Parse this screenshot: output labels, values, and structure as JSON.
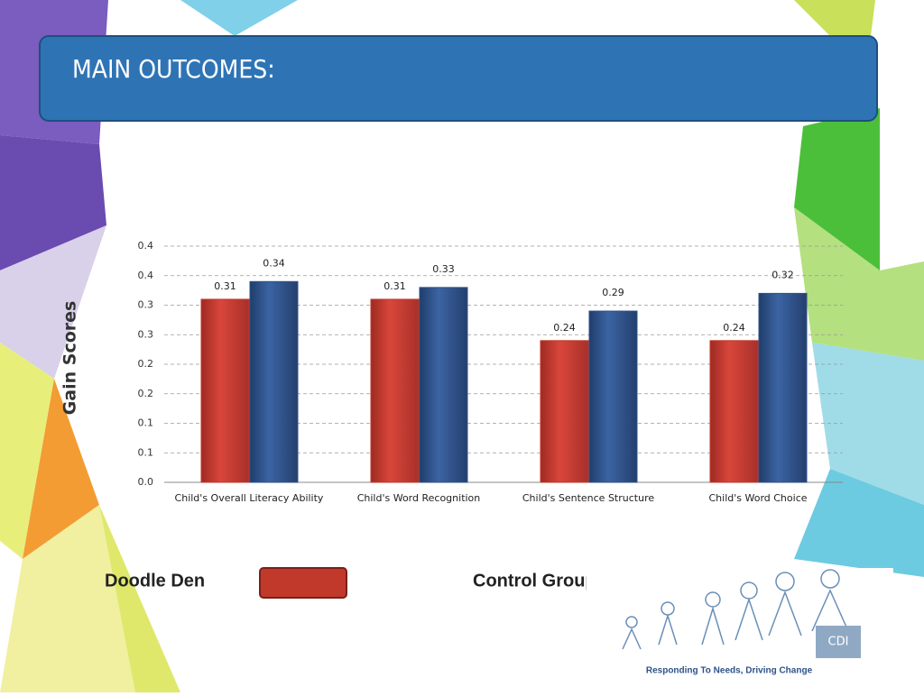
{
  "slide": {
    "title": "MAIN OUTCOMES:"
  },
  "chart_data": {
    "type": "bar",
    "y_label": "Gain Scores",
    "categories": [
      "Child's Overall Literacy Ability",
      "Child's Word Recognition",
      "Child's Sentence Structure",
      "Child's Word Choice"
    ],
    "series": [
      {
        "name": "Doodle Den",
        "color": "#c0392b",
        "values": [
          0.31,
          0.31,
          0.24,
          0.24
        ]
      },
      {
        "name": "Control Group",
        "color": "#2e5288",
        "values": [
          0.34,
          0.33,
          0.29,
          0.32
        ]
      }
    ],
    "ylim": [
      0,
      0.4
    ],
    "yticks": [
      {
        "value": 0,
        "label": "0.0"
      },
      {
        "value": 0.05,
        "label": "0.1"
      },
      0.1,
      {
        "value": 0.15,
        "label": "0.2"
      },
      0.2,
      {
        "value": 0.25,
        "label": "0.3"
      },
      0.3,
      {
        "value": 0.35,
        "label": "0.4"
      },
      0.4
    ],
    "grid": true
  },
  "logo": {
    "name": "CDI",
    "tagline": "Responding To Needs, Driving Change"
  }
}
